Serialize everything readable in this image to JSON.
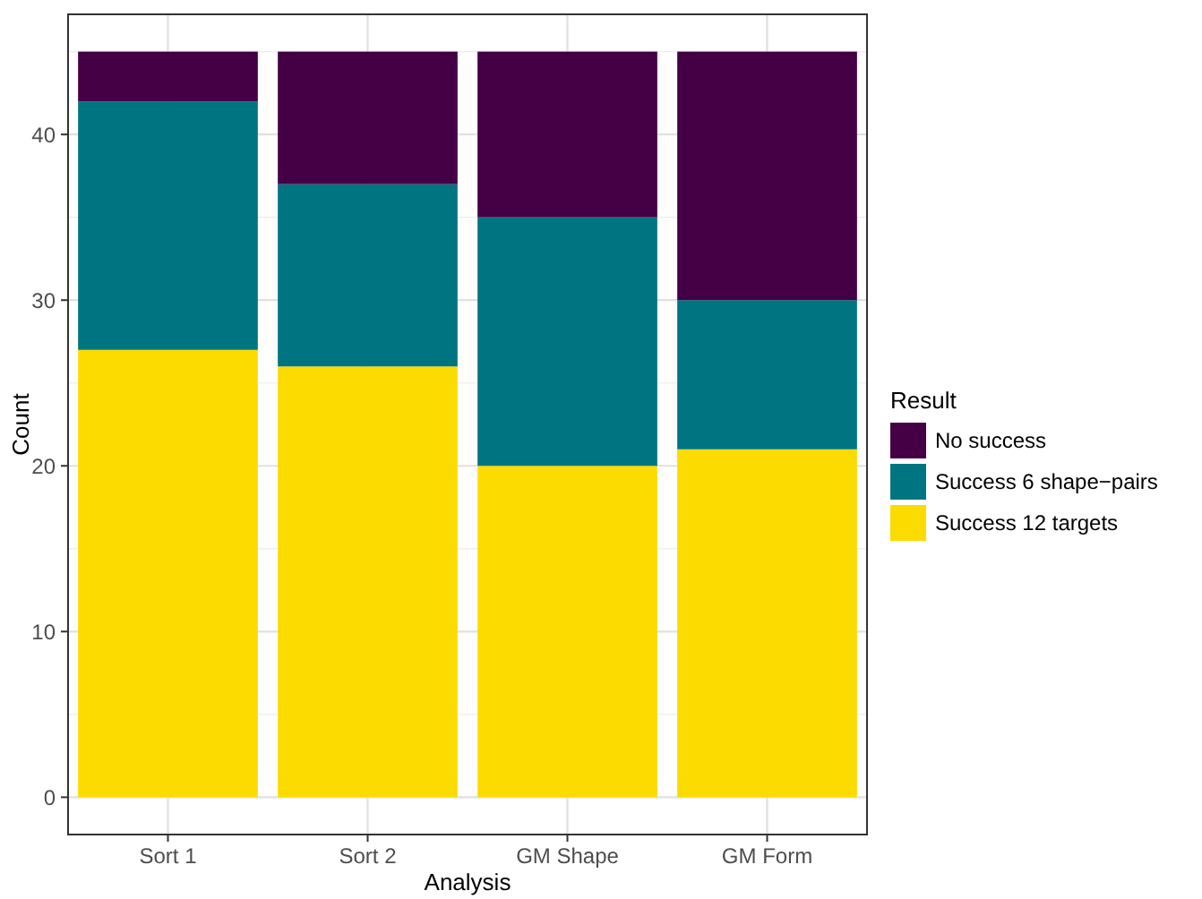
{
  "chart_data": {
    "type": "bar",
    "stacked": true,
    "xlabel": "Analysis",
    "ylabel": "Count",
    "legend_title": "Result",
    "legend": "right",
    "categories": [
      "Sort 1",
      "Sort 2",
      "GM Shape",
      "GM Form"
    ],
    "series": [
      {
        "name": "Success 12 targets",
        "color": "#fcdb00",
        "values": [
          27,
          26,
          20,
          21
        ]
      },
      {
        "name": "Success 6 shape−pairs",
        "color": "#007582",
        "values": [
          15,
          11,
          15,
          9
        ]
      },
      {
        "name": "No success",
        "color": "#450045",
        "values": [
          3,
          8,
          10,
          15
        ]
      }
    ],
    "ylim": [
      -2.25,
      47.25
    ],
    "yticks": [
      0,
      10,
      20,
      30,
      40
    ],
    "grid": true
  }
}
